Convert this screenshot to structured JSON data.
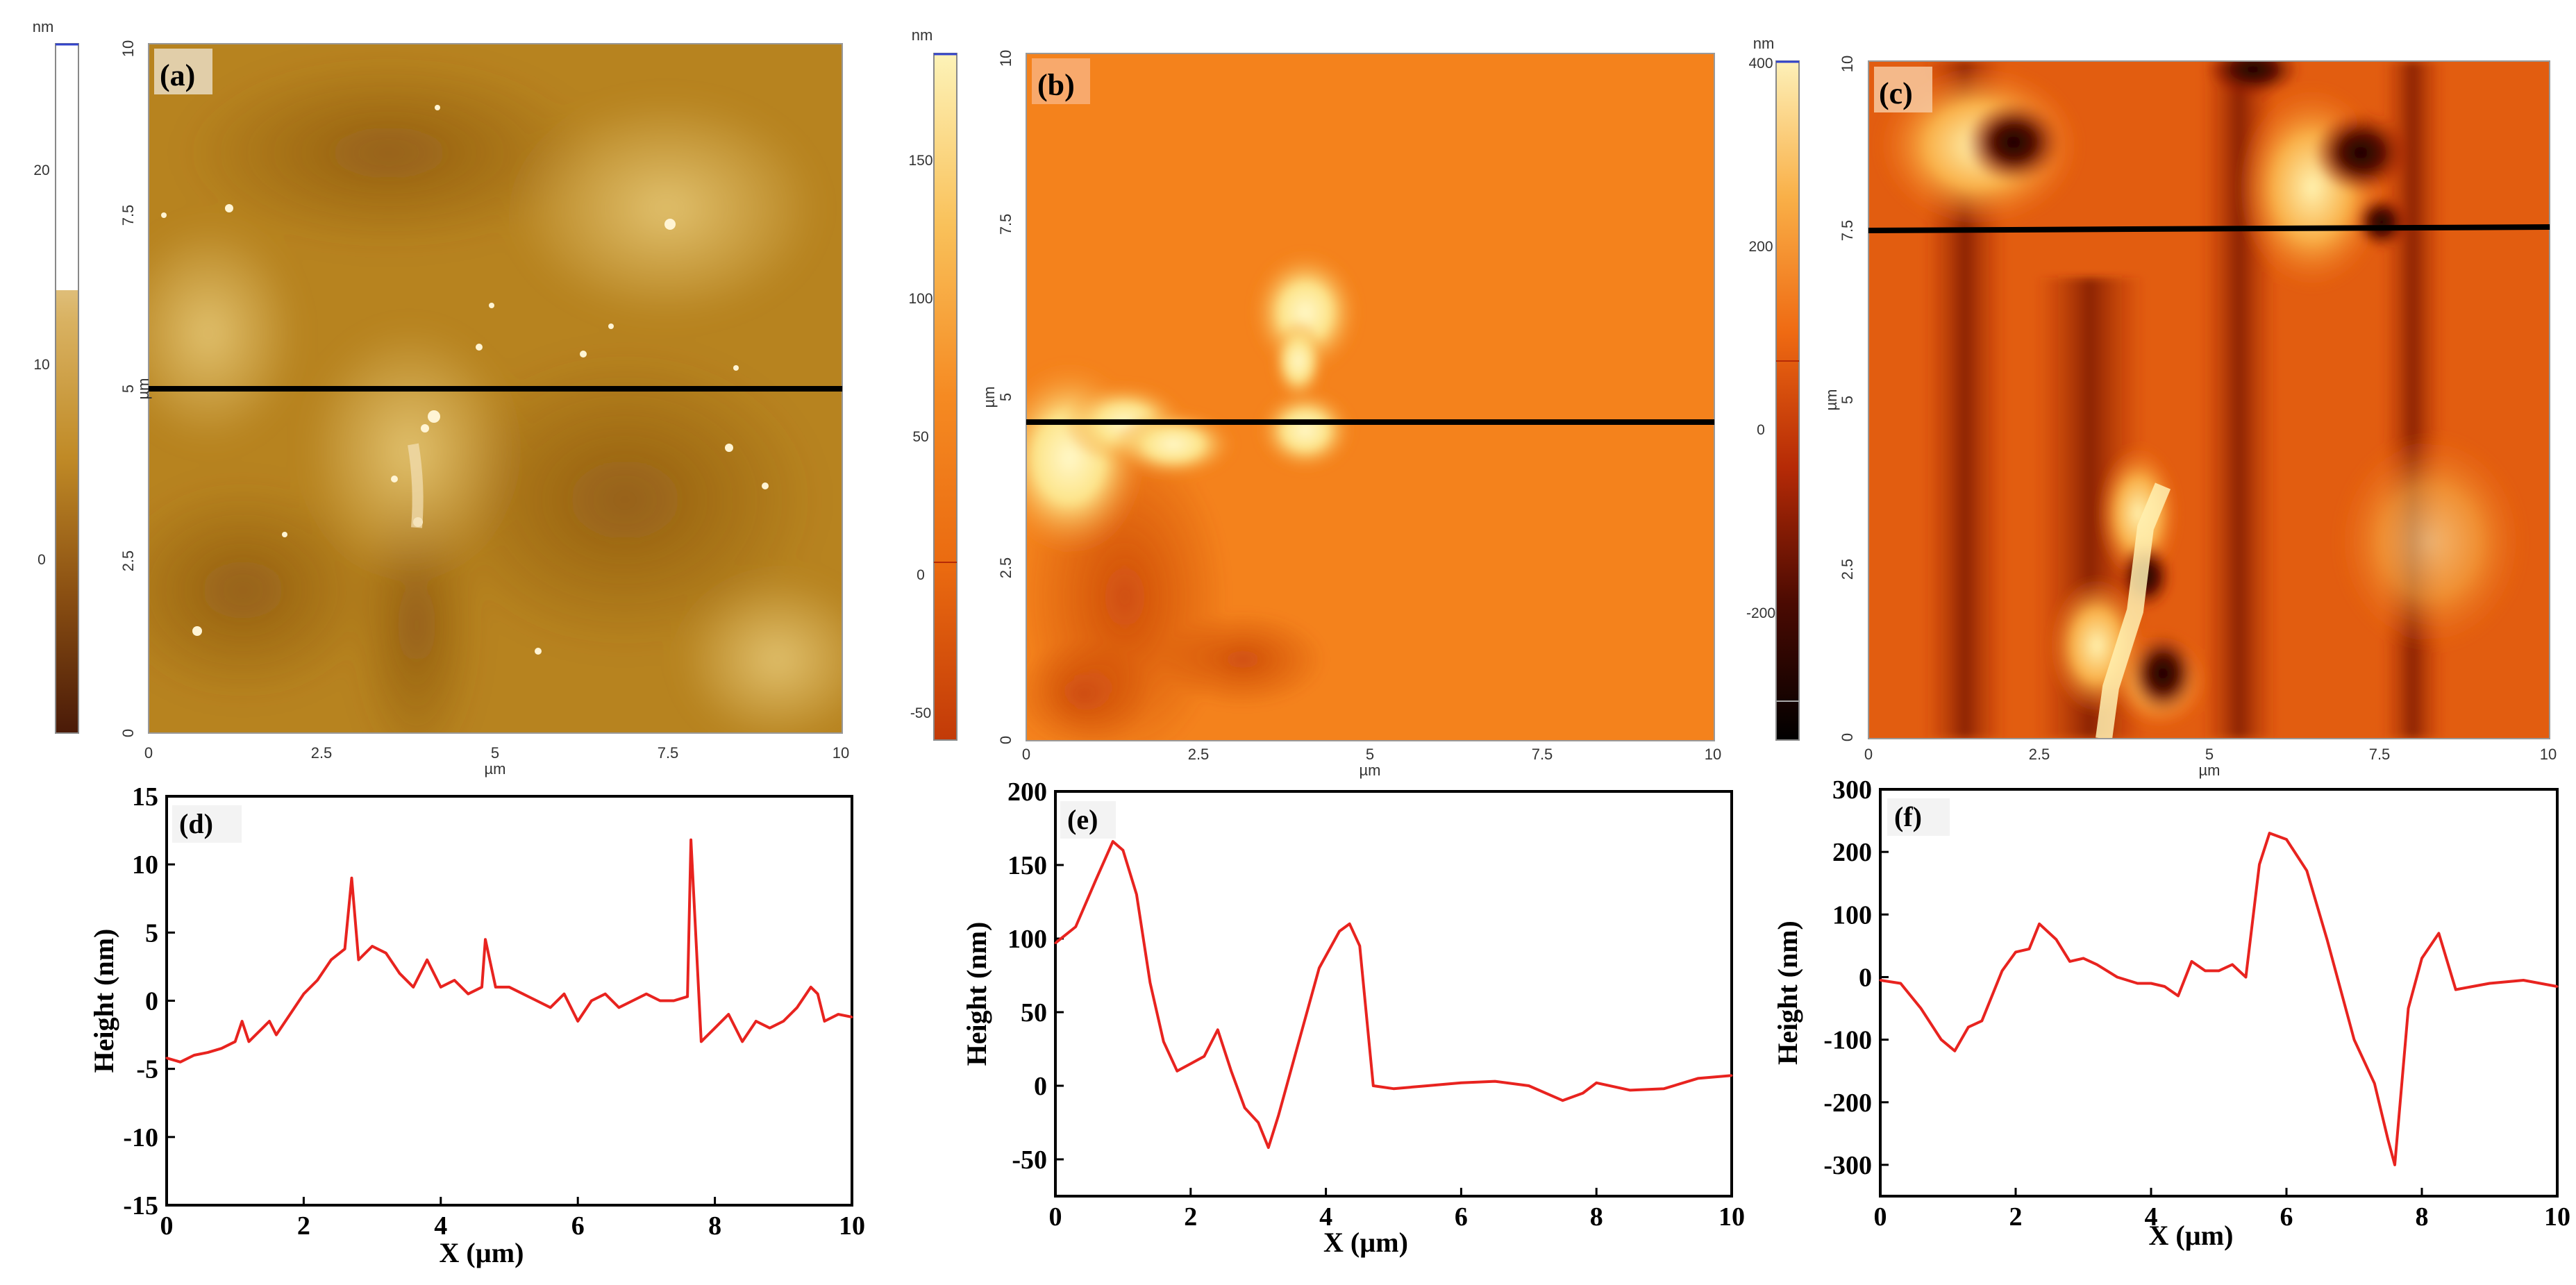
{
  "afm_panels": [
    {
      "label": "(a)",
      "colorbar": {
        "unit": "nm",
        "ticks": [
          "20",
          "10",
          "0"
        ]
      },
      "y_axis": {
        "label": "µm",
        "ticks": [
          "10",
          "7.5",
          "5",
          "2.5",
          "0"
        ]
      },
      "x_axis": {
        "label": "µm",
        "ticks": [
          "0",
          "2.5",
          "5",
          "7.5",
          "10"
        ]
      },
      "palette": [
        "#4a1a08",
        "#8a4f12",
        "#c08a26",
        "#d9b262",
        "#f5e9cc",
        "#ffffff"
      ]
    },
    {
      "label": "(b)",
      "colorbar": {
        "unit": "nm",
        "ticks": [
          "150",
          "100",
          "50",
          "0",
          "-50"
        ]
      },
      "y_axis": {
        "label": "µm",
        "ticks": [
          "10",
          "7.5",
          "5",
          "2.5",
          "0"
        ]
      },
      "x_axis": {
        "label": "µm",
        "ticks": [
          "0",
          "2.5",
          "5",
          "7.5",
          "10"
        ]
      },
      "palette": [
        "#c23a08",
        "#ea6a10",
        "#f58a22",
        "#f9c15a",
        "#fdf3b8"
      ]
    },
    {
      "label": "(c)",
      "colorbar": {
        "unit": "nm",
        "ticks": [
          "400",
          "200",
          "0",
          "-200"
        ]
      },
      "y_axis": {
        "label": "µm",
        "ticks": [
          "10",
          "7.5",
          "5",
          "2.5",
          "0"
        ]
      },
      "x_axis": {
        "label": "µm",
        "ticks": [
          "0",
          "2.5",
          "5",
          "7.5",
          "10"
        ]
      },
      "palette": [
        "#000000",
        "#4a0a02",
        "#b52a06",
        "#ef6a12",
        "#f9b048",
        "#fdf0b8"
      ]
    }
  ],
  "chart_data": [
    {
      "type": "line",
      "label": "(d)",
      "xlabel": "X (µm)",
      "ylabel": "Height (nm)",
      "xlim": [
        0,
        10
      ],
      "ylim": [
        -15,
        15
      ],
      "xticks": [
        "0",
        "2",
        "4",
        "6",
        "8",
        "10"
      ],
      "yticks": [
        "15",
        "10",
        "5",
        "0",
        "-5",
        "-10",
        "-15"
      ],
      "color": "#e8231f",
      "x": [
        0,
        0.2,
        0.4,
        0.6,
        0.8,
        1.0,
        1.1,
        1.2,
        1.4,
        1.5,
        1.6,
        1.8,
        2.0,
        2.2,
        2.4,
        2.6,
        2.7,
        2.8,
        3.0,
        3.2,
        3.4,
        3.6,
        3.8,
        4.0,
        4.2,
        4.4,
        4.6,
        4.65,
        4.8,
        5.0,
        5.2,
        5.4,
        5.6,
        5.8,
        6.0,
        6.2,
        6.4,
        6.6,
        6.8,
        7.0,
        7.2,
        7.4,
        7.6,
        7.65,
        7.8,
        8.0,
        8.2,
        8.4,
        8.6,
        8.8,
        9.0,
        9.2,
        9.4,
        9.5,
        9.6,
        9.8,
        10.0
      ],
      "y": [
        -4.2,
        -4.5,
        -4.0,
        -3.8,
        -3.5,
        -3.0,
        -1.5,
        -3.0,
        -2.0,
        -1.5,
        -2.5,
        -1.0,
        0.5,
        1.5,
        3.0,
        3.8,
        9.0,
        3.0,
        4.0,
        3.5,
        2.0,
        1.0,
        3.0,
        1.0,
        1.5,
        0.5,
        1.0,
        4.5,
        1.0,
        1.0,
        0.5,
        0.0,
        -0.5,
        0.5,
        -1.5,
        0.0,
        0.5,
        -0.5,
        0.0,
        0.5,
        0.0,
        0.0,
        0.3,
        11.8,
        -3.0,
        -2.0,
        -1.0,
        -3.0,
        -1.5,
        -2.0,
        -1.5,
        -0.5,
        1.0,
        0.5,
        -1.5,
        -1.0,
        -1.2
      ]
    },
    {
      "type": "line",
      "label": "(e)",
      "xlabel": "X (µm)",
      "ylabel": "Height (nm)",
      "xlim": [
        0,
        10
      ],
      "ylim": [
        -75,
        200
      ],
      "xticks": [
        "0",
        "2",
        "4",
        "6",
        "8",
        "10"
      ],
      "yticks": [
        "200",
        "150",
        "100",
        "50",
        "0",
        "-50"
      ],
      "color": "#e8231f",
      "x": [
        0,
        0.3,
        0.6,
        0.85,
        1.0,
        1.2,
        1.4,
        1.6,
        1.8,
        2.0,
        2.2,
        2.4,
        2.6,
        2.8,
        3.0,
        3.15,
        3.3,
        3.6,
        3.9,
        4.2,
        4.35,
        4.5,
        4.7,
        5.0,
        5.5,
        6.0,
        6.5,
        7.0,
        7.5,
        7.8,
        8.0,
        8.5,
        9.0,
        9.5,
        10.0
      ],
      "y": [
        97,
        108,
        140,
        166,
        160,
        130,
        70,
        30,
        10,
        15,
        20,
        38,
        10,
        -15,
        -25,
        -42,
        -20,
        30,
        80,
        105,
        110,
        95,
        0,
        -2,
        0,
        2,
        3,
        0,
        -10,
        -5,
        2,
        -3,
        -2,
        5,
        7
      ]
    },
    {
      "type": "line",
      "label": "(f)",
      "xlabel": "X (µm)",
      "ylabel": "Height (nm)",
      "xlim": [
        0,
        10
      ],
      "ylim": [
        -350,
        300
      ],
      "xticks": [
        "0",
        "2",
        "4",
        "6",
        "8",
        "10"
      ],
      "yticks": [
        "300",
        "200",
        "100",
        "0",
        "-100",
        "-200",
        "-300"
      ],
      "color": "#e8231f",
      "x": [
        0,
        0.3,
        0.6,
        0.9,
        1.1,
        1.3,
        1.5,
        1.8,
        2.0,
        2.2,
        2.35,
        2.6,
        2.8,
        3.0,
        3.2,
        3.5,
        3.8,
        4.0,
        4.2,
        4.4,
        4.6,
        4.8,
        5.0,
        5.2,
        5.4,
        5.6,
        5.75,
        6.0,
        6.3,
        6.6,
        7.0,
        7.3,
        7.5,
        7.6,
        7.8,
        8.0,
        8.25,
        8.5,
        9.0,
        9.5,
        10.0
      ],
      "y": [
        -5,
        -10,
        -50,
        -100,
        -118,
        -80,
        -70,
        10,
        40,
        45,
        85,
        60,
        25,
        30,
        20,
        0,
        -10,
        -10,
        -15,
        -30,
        25,
        10,
        10,
        20,
        0,
        180,
        230,
        220,
        170,
        60,
        -100,
        -170,
        -260,
        -300,
        -50,
        30,
        70,
        -20,
        -10,
        -5,
        -15
      ]
    }
  ]
}
